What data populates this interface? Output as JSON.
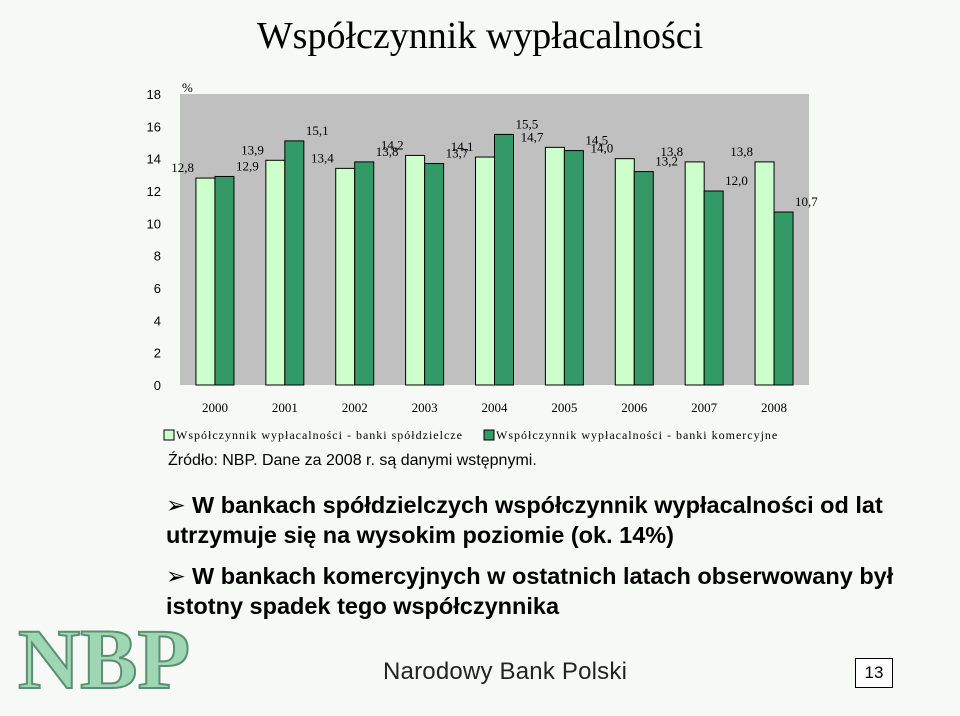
{
  "slide": {
    "title": "Współczynnik wypłacalności",
    "source": "Źródło: NBP. Dane za 2008 r. są danymi wstępnymi.",
    "bullets": [
      "W bankach spółdzielczych współczynnik wypłacalności od lat utrzymuje się na wysokim poziomie (ok. 14%)",
      "W bankach komercyjnych w ostatnich latach obserwowany był istotny spadek tego współczynnika"
    ],
    "footer": "Narodowy Bank Polski",
    "page_number": "13",
    "logo_text": "NBP",
    "colors": {
      "light_bar": "#ccffcc",
      "dark_bar": "#339966",
      "text": "#000000"
    }
  },
  "chart_data": {
    "type": "bar",
    "title": "Współczynnik wypłacalności",
    "ylabel": "%",
    "ylim": [
      0,
      18
    ],
    "yticks": [
      "0",
      "2",
      "4",
      "6",
      "8",
      "10",
      "12",
      "14",
      "16",
      "18"
    ],
    "categories": [
      "2000",
      "2001",
      "2002",
      "2003",
      "2004",
      "2005",
      "2006",
      "2007",
      "2008"
    ],
    "legend_position": "bottom",
    "series": [
      {
        "name": "Współczynnik wypłacalności - banki spółdzielcze",
        "values": [
          12.8,
          13.9,
          13.4,
          14.2,
          14.1,
          14.7,
          14.0,
          13.8,
          13.8
        ],
        "labels": [
          "12,8",
          "13,9",
          "13,4",
          "14,2",
          "14,1",
          "14,7",
          "14,0",
          "13,8",
          "13,8"
        ],
        "color": "#ccffcc"
      },
      {
        "name": "Współczynnik wypłacalności - banki komercyjne",
        "values": [
          12.9,
          15.1,
          13.8,
          13.7,
          15.5,
          14.5,
          13.2,
          12.0,
          10.7
        ],
        "labels": [
          "12,9",
          "15,1",
          "13,8",
          "13,7",
          "15,5",
          "14,5",
          "13,2",
          "12,0",
          "10,7"
        ],
        "color": "#339966"
      }
    ]
  }
}
